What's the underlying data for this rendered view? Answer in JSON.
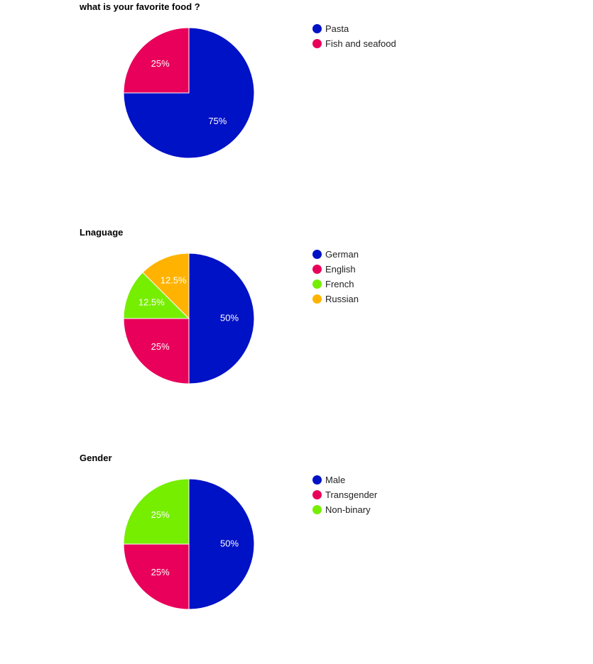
{
  "chart_data": [
    {
      "type": "pie",
      "title": "what is your favorite food ?",
      "labels": [
        "Pasta",
        "Fish and seafood"
      ],
      "values": [
        75,
        25
      ],
      "value_labels": [
        "75%",
        "25%"
      ],
      "colors": [
        "#0012c6",
        "#e8005a"
      ],
      "legend_position": "right"
    },
    {
      "type": "pie",
      "title": "Lnaguage",
      "labels": [
        "German",
        "English",
        "French",
        "Russian"
      ],
      "values": [
        50,
        25,
        12.5,
        12.5
      ],
      "value_labels": [
        "50%",
        "25%",
        "12.5%",
        "12.5%"
      ],
      "colors": [
        "#0012c6",
        "#e8005a",
        "#76ee00",
        "#ffb300"
      ],
      "legend_position": "right"
    },
    {
      "type": "pie",
      "title": "Gender",
      "labels": [
        "Male",
        "Transgender",
        "Non-binary"
      ],
      "values": [
        50,
        25,
        25
      ],
      "value_labels": [
        "50%",
        "25%",
        "25%"
      ],
      "colors": [
        "#0012c6",
        "#e8005a",
        "#76ee00"
      ],
      "legend_position": "right"
    }
  ]
}
